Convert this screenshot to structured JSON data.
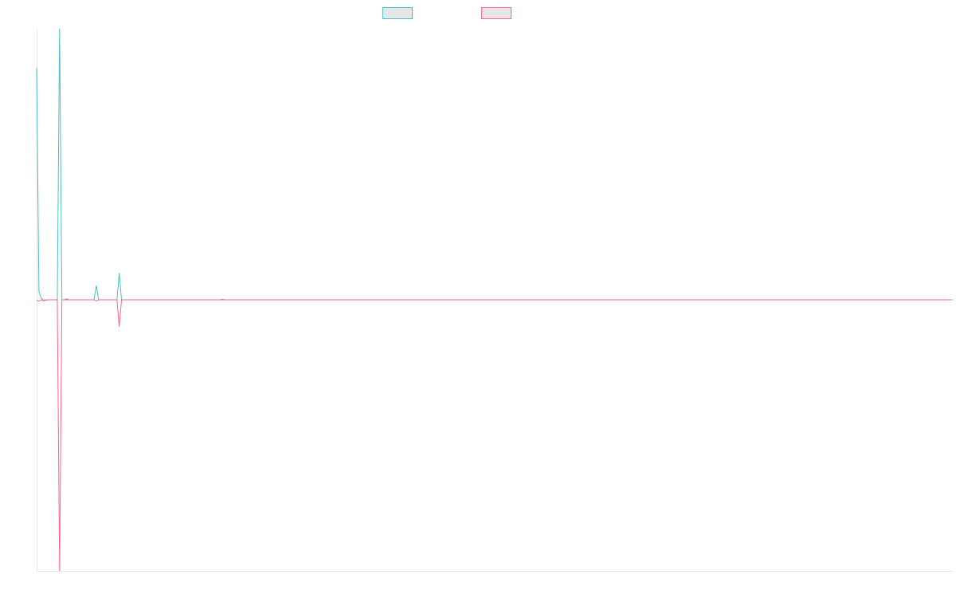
{
  "chart_data": {
    "type": "line",
    "title": "",
    "xlabel": "",
    "ylabel": "",
    "grid": false,
    "legend_position": "top-center",
    "ylim": [
      -1,
      1
    ],
    "x_count": 400,
    "series": [
      {
        "name": "",
        "color": "#4bc0c0",
        "points": [
          [
            0,
            0.855
          ],
          [
            1,
            0.03
          ],
          [
            2,
            0.005
          ],
          [
            3,
            0.0
          ],
          [
            4,
            -0.002
          ],
          [
            5,
            0.0
          ],
          [
            6,
            0.0
          ],
          [
            7,
            0.0
          ],
          [
            8,
            0.0
          ],
          [
            9,
            0.0
          ],
          [
            10,
            1.0
          ],
          [
            11,
            0.0
          ],
          [
            12,
            0.0
          ],
          [
            13,
            0.004
          ],
          [
            14,
            0.0
          ],
          [
            20,
            0.0
          ],
          [
            25,
            0.0
          ],
          [
            26,
            0.052
          ],
          [
            27,
            0.0
          ],
          [
            35,
            0.0
          ],
          [
            36,
            0.098
          ],
          [
            37,
            0.0
          ],
          [
            80,
            0.0
          ],
          [
            81,
            0.002
          ],
          [
            82,
            0.0
          ],
          [
            399,
            0.0
          ]
        ]
      },
      {
        "name": "",
        "color": "#ff6384",
        "points": [
          [
            0,
            -0.002
          ],
          [
            1,
            -0.005
          ],
          [
            2,
            0.0
          ],
          [
            3,
            -0.004
          ],
          [
            4,
            0.0
          ],
          [
            9,
            0.0
          ],
          [
            10,
            -1.0
          ],
          [
            11,
            0.0
          ],
          [
            25,
            0.0
          ],
          [
            26,
            -0.004
          ],
          [
            27,
            0.0
          ],
          [
            35,
            0.0
          ],
          [
            36,
            -0.098
          ],
          [
            37,
            0.0
          ],
          [
            399,
            0.0
          ]
        ]
      }
    ]
  }
}
